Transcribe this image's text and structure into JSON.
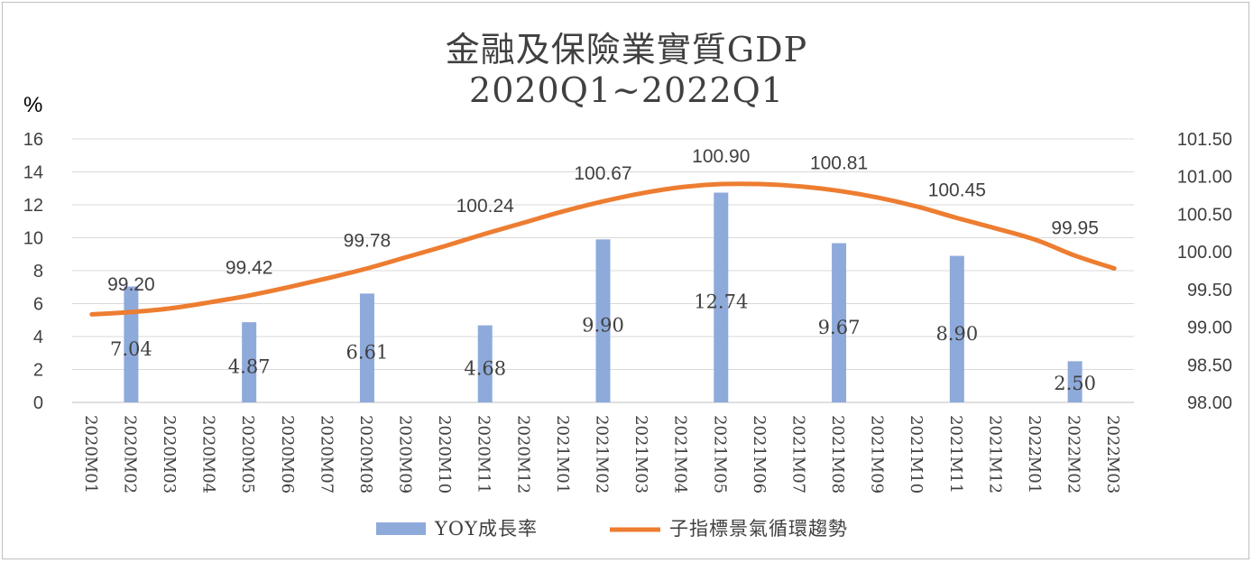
{
  "chart_data": {
    "type": "bar+line",
    "title": "金融及保險業實質GDP",
    "subtitle": "2020Q1~2022Q1",
    "y_left_unit": "%",
    "y_left_ticks": [
      "0",
      "2",
      "4",
      "6",
      "8",
      "10",
      "12",
      "14",
      "16"
    ],
    "y_left_range": [
      0,
      16
    ],
    "y_right_ticks": [
      "98.00",
      "98.50",
      "99.00",
      "99.50",
      "100.00",
      "100.50",
      "101.00",
      "101.50"
    ],
    "y_right_range": [
      98.0,
      101.5
    ],
    "categories": [
      "2020M01",
      "2020M02",
      "2020M03",
      "2020M04",
      "2020M05",
      "2020M06",
      "2020M07",
      "2020M08",
      "2020M09",
      "2020M10",
      "2020M11",
      "2020M12",
      "2021M01",
      "2021M02",
      "2021M03",
      "2021M04",
      "2021M05",
      "2021M06",
      "2021M07",
      "2021M08",
      "2021M09",
      "2021M10",
      "2021M11",
      "2021M12",
      "2022M01",
      "2022M02",
      "2022M03"
    ],
    "bar_series": {
      "name": "YOY成長率",
      "color": "#8eaadb",
      "points": [
        {
          "category": "2020M02",
          "value": 7.04,
          "label": "7.04"
        },
        {
          "category": "2020M05",
          "value": 4.87,
          "label": "4.87"
        },
        {
          "category": "2020M08",
          "value": 6.61,
          "label": "6.61"
        },
        {
          "category": "2020M11",
          "value": 4.68,
          "label": "4.68"
        },
        {
          "category": "2021M02",
          "value": 9.9,
          "label": "9.90"
        },
        {
          "category": "2021M05",
          "value": 12.74,
          "label": "12.74"
        },
        {
          "category": "2021M08",
          "value": 9.67,
          "label": "9.67"
        },
        {
          "category": "2021M11",
          "value": 8.9,
          "label": "8.90"
        },
        {
          "category": "2022M02",
          "value": 2.5,
          "label": "2.50"
        }
      ]
    },
    "line_series": {
      "name": "子指標景氣循環趨勢",
      "color": "#ed7d31",
      "values": [
        99.17,
        99.2,
        99.25,
        99.33,
        99.42,
        99.53,
        99.65,
        99.78,
        99.93,
        100.08,
        100.24,
        100.39,
        100.54,
        100.67,
        100.78,
        100.86,
        100.9,
        100.9,
        100.87,
        100.81,
        100.72,
        100.6,
        100.45,
        100.31,
        100.16,
        99.95,
        99.78
      ],
      "labels": [
        {
          "category": "2020M02",
          "label": "99.20"
        },
        {
          "category": "2020M05",
          "label": "99.42"
        },
        {
          "category": "2020M08",
          "label": "99.78"
        },
        {
          "category": "2020M11",
          "label": "100.24"
        },
        {
          "category": "2021M02",
          "label": "100.67"
        },
        {
          "category": "2021M05",
          "label": "100.90"
        },
        {
          "category": "2021M08",
          "label": "100.81"
        },
        {
          "category": "2021M11",
          "label": "100.45"
        },
        {
          "category": "2022M02",
          "label": "99.95"
        }
      ]
    },
    "grid": true,
    "legend_position": "bottom"
  }
}
